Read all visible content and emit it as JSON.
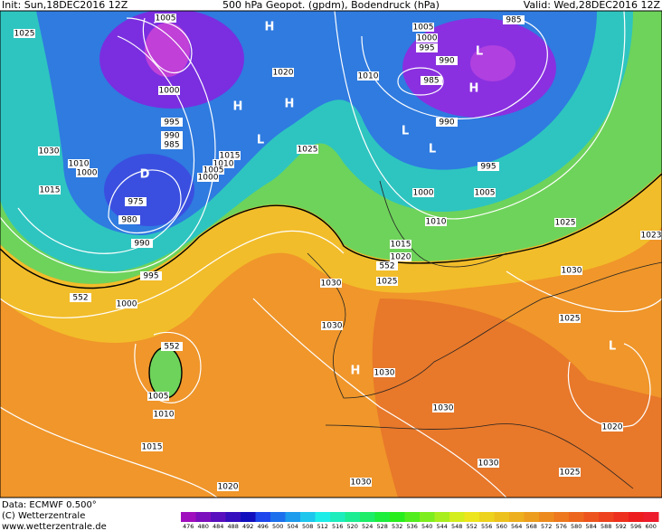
{
  "header": {
    "init": "Init: Sun,18DEC2016 12Z",
    "title": "500 hPa Geopot. (gpdm), Bodendruck (hPa)",
    "valid": "Valid: Wed,28DEC2016 12Z"
  },
  "footer": {
    "data": "Data: ECMWF  0.500°",
    "copyright": "(C) Wetterzentrale",
    "url": "www.wetterzentrale.de"
  },
  "colorbar": {
    "labels": [
      476,
      480,
      484,
      488,
      492,
      496,
      500,
      504,
      508,
      512,
      516,
      520,
      524,
      528,
      532,
      536,
      540,
      544,
      548,
      552,
      556,
      560,
      564,
      568,
      572,
      576,
      580,
      584,
      588,
      592,
      596,
      600
    ]
  },
  "isobar_labels": [
    "1005",
    "1000",
    "995",
    "990",
    "985",
    "1025",
    "1030",
    "1010",
    "1000",
    "1015",
    "975",
    "980",
    "990",
    "995",
    "1000",
    "552",
    "1015",
    "1010",
    "1005",
    "1000",
    "1020",
    "1025",
    "1010",
    "1005",
    "1000",
    "995",
    "990",
    "985",
    "985",
    "990",
    "995",
    "1000",
    "1005",
    "1010",
    "1015",
    "1020",
    "552",
    "1025",
    "1030",
    "1025",
    "1030",
    "1025",
    "1023",
    "1030",
    "1030",
    "1030",
    "552",
    "1005",
    "1010",
    "1015",
    "1020",
    "1030",
    "1025",
    "1030",
    "1020"
  ],
  "centers": [
    "D",
    "H",
    "H",
    "H",
    "L",
    "L",
    "L",
    "L",
    "H",
    "H",
    "L"
  ]
}
